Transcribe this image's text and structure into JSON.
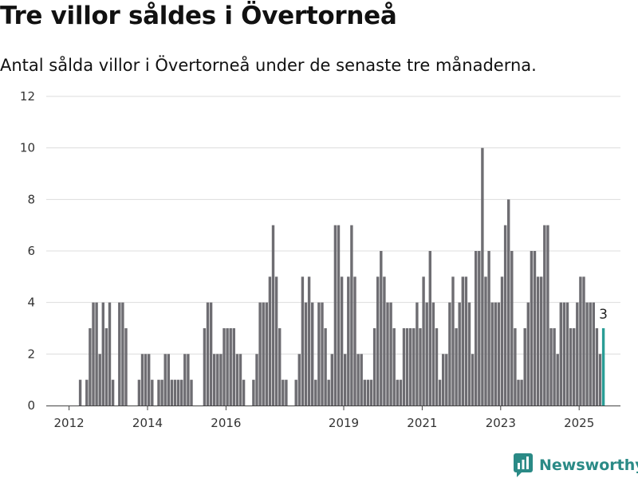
{
  "title": "Tre villor såldes i Övertorneå",
  "subtitle": "Antal sålda villor i Övertorneå under de senaste tre månaderna.",
  "brand": {
    "name": "Newsworthy",
    "icon": "newsworthy-logo-icon"
  },
  "colors": {
    "bar": "#6e6d72",
    "highlight": "#2a9d96",
    "grid": "#dddddd",
    "brand": "#2a8a86"
  },
  "chart_data": {
    "type": "bar",
    "x_start": "2011-07",
    "x_interval": "month",
    "values": [
      0,
      0,
      0,
      0,
      0,
      0,
      0,
      0,
      0,
      1,
      0,
      1,
      3,
      4,
      4,
      2,
      4,
      3,
      4,
      1,
      0,
      4,
      4,
      3,
      0,
      0,
      0,
      1,
      2,
      2,
      2,
      1,
      0,
      1,
      1,
      2,
      2,
      1,
      1,
      1,
      1,
      2,
      2,
      1,
      0,
      0,
      0,
      3,
      4,
      4,
      2,
      2,
      2,
      3,
      3,
      3,
      3,
      2,
      2,
      1,
      0,
      0,
      1,
      2,
      4,
      4,
      4,
      5,
      7,
      5,
      3,
      1,
      1,
      0,
      0,
      1,
      2,
      5,
      4,
      5,
      4,
      1,
      4,
      4,
      3,
      1,
      2,
      7,
      7,
      5,
      2,
      5,
      7,
      5,
      2,
      2,
      1,
      1,
      1,
      3,
      5,
      6,
      5,
      4,
      4,
      3,
      1,
      1,
      3,
      3,
      3,
      3,
      4,
      3,
      5,
      4,
      6,
      4,
      3,
      1,
      2,
      2,
      4,
      5,
      3,
      4,
      5,
      5,
      4,
      2,
      6,
      6,
      10,
      5,
      6,
      4,
      4,
      4,
      5,
      7,
      8,
      6,
      3,
      1,
      1,
      3,
      4,
      6,
      6,
      5,
      5,
      7,
      7,
      3,
      3,
      2,
      4,
      4,
      4,
      3,
      3,
      4,
      5,
      5,
      4,
      4,
      4,
      3,
      2,
      3
    ],
    "highlight_last": true,
    "annotation": "3",
    "xticks": [
      "2012",
      "2014",
      "2016",
      "2019",
      "2021",
      "2023",
      "2025"
    ],
    "ylim": [
      0,
      12
    ],
    "yticks": [
      "0",
      "2",
      "4",
      "6",
      "8",
      "10",
      "12"
    ],
    "grid": true
  }
}
